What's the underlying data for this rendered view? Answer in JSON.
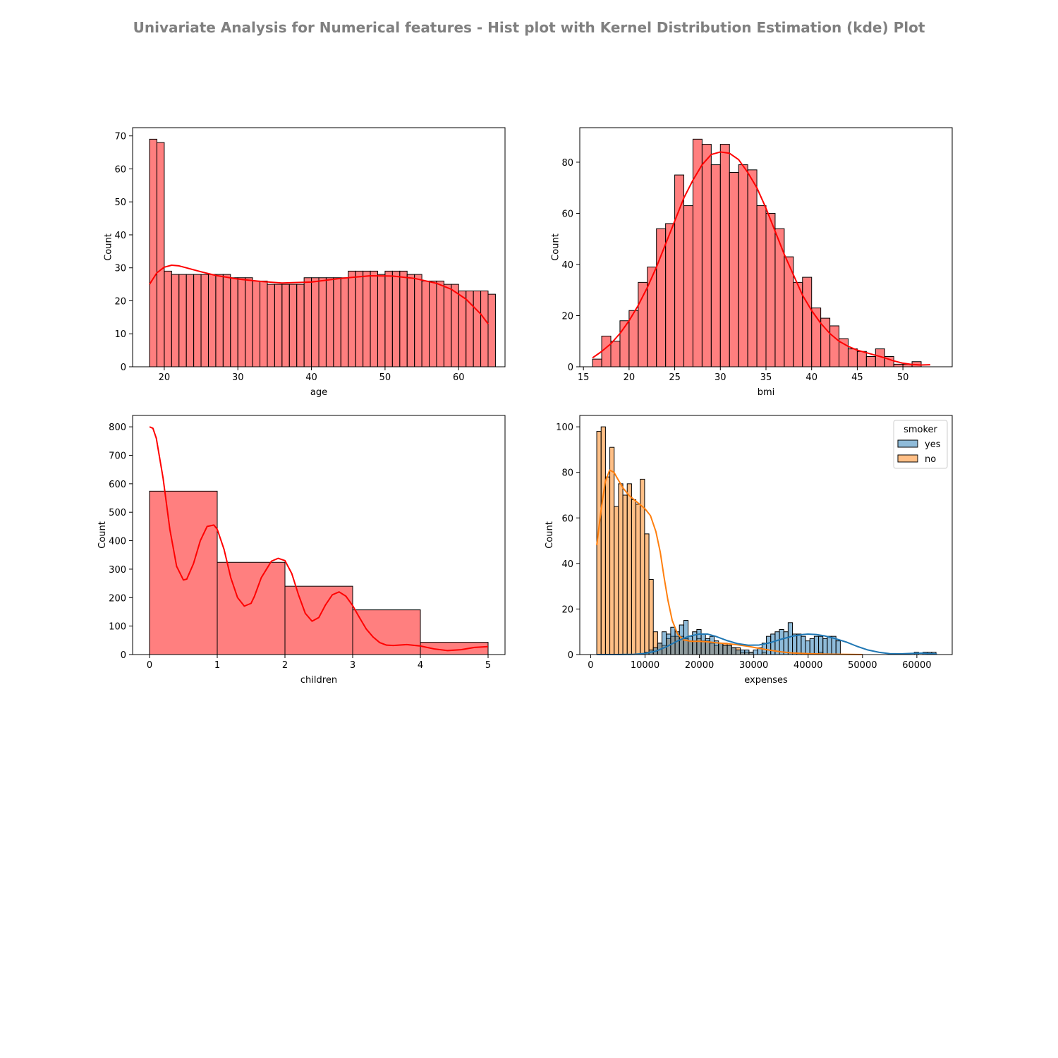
{
  "figure": {
    "suptitle": "Univariate Analysis for Numerical features - Hist plot with Kernel Distribution Estimation (kde) Plot"
  },
  "colors": {
    "hist_red": "#ff0000",
    "yes_blue": "#1f77b4",
    "no_orange": "#ff7f0e",
    "title_gray": "#808080"
  },
  "chart_data": [
    {
      "type": "bar",
      "name": "age",
      "xlabel": "age",
      "ylabel": "Count",
      "xlim": [
        15.7,
        66.3
      ],
      "ylim": [
        0,
        72.5
      ],
      "xticks": [
        20,
        30,
        40,
        50,
        60
      ],
      "yticks": [
        0,
        10,
        20,
        30,
        40,
        50,
        60,
        70
      ],
      "bin_start": 18,
      "bin_width": 1,
      "values": [
        69,
        68,
        29,
        28,
        28,
        28,
        28,
        28,
        28,
        28,
        28,
        27,
        27,
        27,
        26,
        26,
        25,
        25,
        25,
        25,
        25,
        27,
        27,
        27,
        27,
        27,
        27,
        29,
        29,
        29,
        29,
        28,
        29,
        29,
        29,
        28,
        28,
        26,
        26,
        26,
        25,
        25,
        23,
        23,
        23,
        23,
        22
      ],
      "kde": {
        "x": [
          18,
          19,
          20,
          21,
          22,
          23,
          25,
          27,
          30,
          33,
          36,
          40,
          44,
          48,
          51,
          54,
          57,
          59,
          61,
          63,
          64
        ],
        "y": [
          25,
          28.5,
          30.2,
          30.8,
          30.6,
          30,
          28.8,
          27.7,
          26.6,
          25.9,
          25.4,
          25.7,
          26.8,
          27.6,
          27.5,
          26.8,
          25.3,
          23.5,
          20.5,
          16,
          13
        ]
      }
    },
    {
      "type": "bar",
      "name": "bmi",
      "xlabel": "bmi",
      "ylabel": "Count",
      "xlim": [
        14.6,
        55.4
      ],
      "ylim": [
        0,
        93.5
      ],
      "xticks": [
        15,
        20,
        25,
        30,
        35,
        40,
        45,
        50
      ],
      "yticks": [
        0,
        20,
        40,
        60,
        80
      ],
      "bin_start": 16,
      "bin_width": 1,
      "values": [
        3,
        12,
        10,
        18,
        22,
        33,
        39,
        54,
        56,
        75,
        63,
        89,
        87,
        79,
        87,
        76,
        79,
        77,
        63,
        60,
        54,
        43,
        33,
        35,
        23,
        19,
        16,
        11,
        7,
        6,
        4,
        7,
        4,
        1,
        1,
        2
      ],
      "kde": {
        "x": [
          16,
          17,
          18,
          19,
          20,
          21,
          22,
          23,
          24,
          25,
          26,
          27,
          28,
          29,
          30,
          31,
          32,
          33,
          34,
          35,
          36,
          37,
          38,
          39,
          40,
          41,
          42,
          43,
          44,
          45,
          46,
          47,
          48,
          49,
          50,
          51,
          52,
          53
        ],
        "y": [
          3.5,
          6,
          9,
          13,
          18,
          24,
          31,
          39,
          48,
          57,
          66,
          73,
          79,
          83,
          84,
          83.5,
          81,
          76,
          70,
          62,
          53,
          44,
          36,
          28,
          22,
          17,
          13,
          10,
          8,
          6.5,
          5.5,
          4.5,
          3.5,
          2.3,
          1.4,
          0.9,
          0.7,
          0.8
        ]
      }
    },
    {
      "type": "bar",
      "name": "children",
      "xlabel": "children",
      "ylabel": "Count",
      "xlim": [
        -0.25,
        5.25
      ],
      "ylim": [
        0,
        840
      ],
      "xticks": [
        0,
        1,
        2,
        3,
        4,
        5
      ],
      "yticks": [
        0,
        100,
        200,
        300,
        400,
        500,
        600,
        700,
        800
      ],
      "bin_start": 0,
      "bin_width": 1,
      "values": [
        574,
        324,
        240,
        157,
        43
      ],
      "kde": {
        "x": [
          0,
          0.05,
          0.1,
          0.2,
          0.3,
          0.4,
          0.5,
          0.55,
          0.65,
          0.75,
          0.85,
          0.95,
          1.0,
          1.1,
          1.2,
          1.3,
          1.4,
          1.5,
          1.55,
          1.65,
          1.8,
          1.9,
          2.0,
          2.1,
          2.2,
          2.3,
          2.4,
          2.5,
          2.6,
          2.7,
          2.8,
          2.9,
          3.0,
          3.1,
          3.2,
          3.3,
          3.4,
          3.5,
          3.6,
          3.8,
          4.0,
          4.2,
          4.4,
          4.6,
          4.8,
          5.0
        ],
        "y": [
          800,
          795,
          760,
          620,
          440,
          310,
          262,
          265,
          320,
          400,
          450,
          455,
          440,
          370,
          270,
          200,
          170,
          180,
          205,
          270,
          328,
          338,
          330,
          285,
          210,
          145,
          117,
          130,
          175,
          210,
          220,
          205,
          172,
          130,
          90,
          62,
          42,
          33,
          32,
          35,
          30,
          20,
          14,
          17,
          25,
          28
        ]
      }
    },
    {
      "type": "bar",
      "name": "expenses",
      "xlabel": "expenses",
      "ylabel": "Count",
      "xlim": [
        -2000,
        66500
      ],
      "ylim": [
        0,
        105
      ],
      "xticks": [
        0,
        10000,
        20000,
        30000,
        40000,
        50000,
        60000
      ],
      "xtick_labels": [
        "0",
        "10000",
        "20000",
        "30000",
        "40000",
        "50000",
        "60000"
      ],
      "yticks": [
        0,
        20,
        40,
        60,
        80,
        100
      ],
      "legend": {
        "title": "smoker",
        "position": "top-right",
        "entries": [
          "yes",
          "no"
        ]
      },
      "bin_start": 1122,
      "bin_width": 800,
      "series": [
        {
          "name": "no",
          "values": [
            98,
            100,
            78,
            91,
            65,
            75,
            70,
            75,
            68,
            66,
            77,
            53,
            33,
            10,
            5,
            4,
            7,
            8,
            8,
            8,
            7,
            6,
            6,
            7,
            6,
            6,
            5,
            4,
            5,
            5,
            4,
            3,
            3,
            1,
            1,
            1,
            0,
            0,
            1,
            0,
            0,
            0,
            0,
            0,
            0,
            0,
            0,
            0,
            0,
            0,
            0,
            1,
            0,
            0,
            0,
            0,
            0,
            0,
            0,
            0,
            0
          ],
          "kde": {
            "x": [
              1122,
              2000,
              2700,
              3500,
              4300,
              5000,
              6000,
              7000,
              8000,
              9000,
              10000,
              11000,
              12000,
              12800,
              13500,
              14200,
              15000,
              16000,
              17000,
              18500,
              20000,
              21500,
              23000,
              25000,
              27000,
              29000,
              31000,
              33000,
              35000,
              37000,
              40000,
              43000,
              46000,
              50000
            ],
            "y": [
              48,
              65,
              76,
              81,
              80,
              77,
              73,
              70,
              68,
              66,
              64,
              61,
              54,
              45,
              34,
              24,
              15,
              9,
              6.5,
              5.8,
              5.8,
              5.6,
              5.2,
              4.8,
              4.3,
              3.6,
              2.7,
              1.9,
              1.2,
              0.7,
              0.4,
              0.2,
              0.1,
              0
            ]
          }
        },
        {
          "name": "yes",
          "values": [
            0,
            0,
            0,
            0,
            0,
            0,
            0,
            0,
            0,
            0,
            0,
            1,
            2,
            3,
            5,
            10,
            9,
            12,
            10,
            13,
            15,
            8,
            10,
            11,
            9,
            7,
            8,
            6,
            5,
            4,
            4,
            3,
            2,
            2,
            2,
            1,
            2,
            3,
            5,
            8,
            9,
            10,
            11,
            10,
            14,
            9,
            9,
            8,
            6,
            7,
            8,
            8,
            7,
            8,
            8,
            6,
            0,
            0,
            0,
            0,
            0,
            0,
            0,
            0,
            0,
            0,
            0,
            0,
            0,
            0,
            0,
            0,
            0,
            1,
            0,
            1,
            1,
            1
          ],
          "kde": {
            "x": [
              1122,
              5000,
              8000,
              10000,
              12000,
              14000,
              16000,
              18000,
              20000,
              21500,
              23000,
              25000,
              27000,
              29000,
              31000,
              33000,
              35000,
              37000,
              39000,
              40000,
              41500,
              43000,
              45000,
              47000,
              49000,
              51000,
              53000,
              55000,
              57000,
              59000,
              61000,
              63000,
              63700
            ],
            "y": [
              0,
              0,
              0.1,
              0.5,
              1.5,
              3.5,
              6,
              8,
              9,
              9,
              8,
              6.2,
              4.8,
              4.1,
              4.2,
              5.2,
              6.7,
              8,
              8.8,
              9,
              8.8,
              8.2,
              7,
              5.5,
              3.6,
              2,
              1,
              0.4,
              0.3,
              0.5,
              0.6,
              0.3,
              0.2
            ]
          }
        }
      ]
    }
  ]
}
